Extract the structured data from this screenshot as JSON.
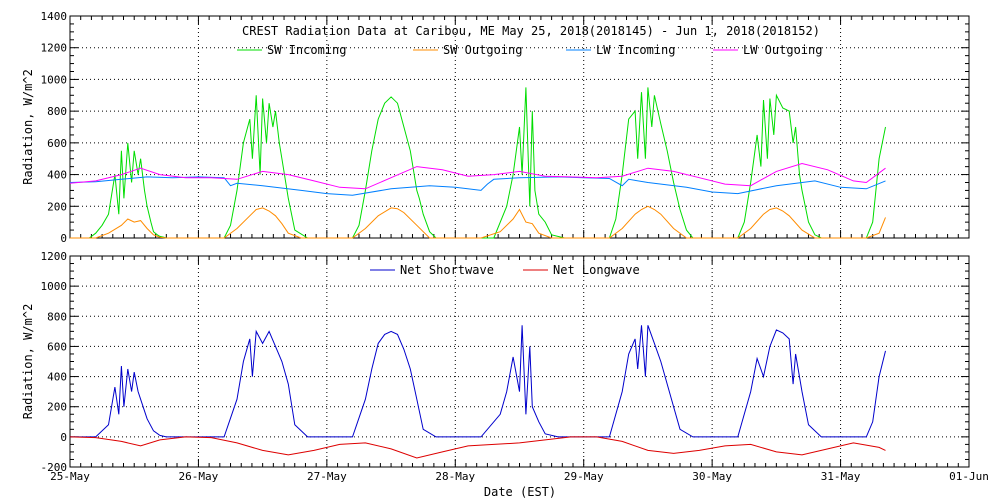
{
  "title": "CREST Radiation Data at Caribou, ME   May 25, 2018(2018145) - Jun  1, 2018(2018152)",
  "xlabel": "Date (EST)",
  "chart_data": [
    {
      "type": "line",
      "title": "CREST Radiation Data at Caribou, ME   May 25, 2018(2018145) - Jun  1, 2018(2018152)",
      "xlabel": "",
      "ylabel": "Radiation, W/m^2",
      "xlim": [
        0,
        7
      ],
      "ylim": [
        0,
        1400
      ],
      "yticks": [
        0,
        200,
        400,
        600,
        800,
        1000,
        1200,
        1400
      ],
      "grid": true,
      "legend": "top",
      "series": [
        {
          "name": "SW Incoming",
          "color": "#00dd00",
          "x": [
            0.0,
            0.15,
            0.2,
            0.25,
            0.3,
            0.35,
            0.38,
            0.4,
            0.42,
            0.45,
            0.48,
            0.5,
            0.53,
            0.55,
            0.58,
            0.6,
            0.63,
            0.65,
            0.68,
            0.7,
            0.73,
            0.75,
            0.8,
            0.85,
            1.2,
            1.25,
            1.3,
            1.35,
            1.4,
            1.42,
            1.45,
            1.48,
            1.5,
            1.53,
            1.55,
            1.58,
            1.6,
            1.63,
            1.65,
            1.7,
            1.75,
            1.85,
            2.2,
            2.25,
            2.3,
            2.35,
            2.4,
            2.45,
            2.5,
            2.55,
            2.6,
            2.65,
            2.7,
            2.72,
            2.75,
            2.8,
            2.85,
            3.2,
            3.3,
            3.4,
            3.45,
            3.5,
            3.52,
            3.55,
            3.58,
            3.6,
            3.62,
            3.65,
            3.7,
            3.75,
            3.85,
            4.2,
            4.25,
            4.3,
            4.35,
            4.4,
            4.42,
            4.45,
            4.48,
            4.5,
            4.53,
            4.55,
            4.6,
            4.65,
            4.7,
            4.75,
            4.8,
            4.85,
            5.2,
            5.25,
            5.3,
            5.35,
            5.38,
            5.4,
            5.43,
            5.45,
            5.48,
            5.5,
            5.55,
            5.6,
            5.63,
            5.65,
            5.68,
            5.7,
            5.75,
            5.8,
            5.85,
            6.2,
            6.25,
            6.3,
            6.35
          ],
          "values": [
            0,
            0,
            30,
            80,
            150,
            400,
            150,
            550,
            250,
            600,
            350,
            550,
            400,
            500,
            300,
            200,
            100,
            40,
            20,
            10,
            5,
            0,
            0,
            0,
            0,
            80,
            300,
            600,
            750,
            500,
            900,
            400,
            880,
            600,
            850,
            700,
            800,
            600,
            500,
            250,
            50,
            0,
            0,
            80,
            300,
            550,
            750,
            850,
            890,
            850,
            700,
            550,
            300,
            250,
            150,
            40,
            0,
            0,
            0,
            200,
            400,
            700,
            400,
            950,
            200,
            800,
            300,
            150,
            100,
            20,
            0,
            0,
            120,
            400,
            750,
            800,
            500,
            920,
            500,
            950,
            700,
            900,
            720,
            550,
            350,
            180,
            50,
            0,
            0,
            100,
            350,
            650,
            450,
            870,
            500,
            880,
            650,
            900,
            820,
            800,
            600,
            700,
            400,
            300,
            100,
            20,
            0,
            0,
            100,
            500,
            700
          ]
        },
        {
          "name": "SW Outgoing",
          "color": "#ff8c00",
          "x": [
            0.0,
            0.2,
            0.3,
            0.4,
            0.45,
            0.5,
            0.55,
            0.6,
            0.65,
            0.7,
            0.75,
            1.2,
            1.3,
            1.4,
            1.45,
            1.5,
            1.55,
            1.6,
            1.65,
            1.7,
            1.8,
            2.2,
            2.3,
            2.4,
            2.5,
            2.55,
            2.6,
            2.7,
            2.8,
            3.2,
            3.35,
            3.45,
            3.5,
            3.55,
            3.6,
            3.65,
            3.75,
            4.2,
            4.3,
            4.4,
            4.45,
            4.5,
            4.55,
            4.6,
            4.7,
            4.8,
            5.2,
            5.3,
            5.4,
            5.45,
            5.5,
            5.55,
            5.6,
            5.7,
            5.8,
            6.2,
            6.3,
            6.35
          ],
          "values": [
            0,
            0,
            30,
            80,
            120,
            100,
            110,
            60,
            20,
            5,
            0,
            0,
            60,
            140,
            180,
            190,
            170,
            140,
            90,
            30,
            0,
            0,
            60,
            140,
            190,
            185,
            160,
            80,
            0,
            0,
            40,
            120,
            180,
            100,
            90,
            30,
            0,
            0,
            60,
            150,
            180,
            200,
            180,
            150,
            60,
            0,
            0,
            60,
            150,
            180,
            190,
            170,
            140,
            50,
            0,
            0,
            30,
            130
          ]
        },
        {
          "name": "LW Incoming",
          "color": "#0080ff",
          "x": [
            0.0,
            0.2,
            0.4,
            0.6,
            0.8,
            1.0,
            1.2,
            1.25,
            1.3,
            1.5,
            1.8,
            2.0,
            2.2,
            2.5,
            2.8,
            3.0,
            3.2,
            3.25,
            3.3,
            3.5,
            3.8,
            4.0,
            4.2,
            4.3,
            4.35,
            4.5,
            4.8,
            5.0,
            5.2,
            5.5,
            5.8,
            6.0,
            6.2,
            6.35
          ],
          "values": [
            350,
            355,
            370,
            385,
            380,
            385,
            380,
            330,
            345,
            330,
            300,
            280,
            270,
            310,
            330,
            320,
            300,
            340,
            370,
            380,
            385,
            380,
            375,
            330,
            370,
            350,
            320,
            290,
            280,
            330,
            360,
            320,
            310,
            360
          ]
        },
        {
          "name": "LW Outgoing",
          "color": "#ff00ff",
          "x": [
            0.0,
            0.2,
            0.4,
            0.55,
            0.7,
            0.9,
            1.1,
            1.3,
            1.5,
            1.7,
            1.9,
            2.1,
            2.3,
            2.5,
            2.7,
            2.9,
            3.1,
            3.3,
            3.5,
            3.7,
            3.9,
            4.1,
            4.3,
            4.5,
            4.7,
            4.9,
            5.1,
            5.3,
            5.5,
            5.7,
            5.9,
            6.1,
            6.2,
            6.35
          ],
          "values": [
            345,
            360,
            400,
            440,
            400,
            380,
            380,
            370,
            420,
            400,
            360,
            320,
            310,
            380,
            450,
            430,
            390,
            400,
            420,
            390,
            385,
            380,
            390,
            440,
            420,
            380,
            340,
            330,
            420,
            470,
            430,
            360,
            350,
            440
          ]
        }
      ]
    },
    {
      "type": "line",
      "title": "",
      "xlabel": "Date (EST)",
      "ylabel": "Radiation, W/m^2",
      "xlim": [
        0,
        7
      ],
      "ylim": [
        -200,
        1200
      ],
      "yticks": [
        -200,
        0,
        200,
        400,
        600,
        800,
        1000,
        1200
      ],
      "xticks": [
        "25-May",
        "26-May",
        "27-May",
        "28-May",
        "29-May",
        "30-May",
        "31-May",
        "01-Jun"
      ],
      "grid": true,
      "legend": "top",
      "series": [
        {
          "name": "Net Shortwave",
          "color": "#0000cc",
          "x": [
            0.0,
            0.2,
            0.3,
            0.35,
            0.38,
            0.4,
            0.42,
            0.45,
            0.48,
            0.5,
            0.53,
            0.55,
            0.6,
            0.65,
            0.7,
            0.75,
            0.8,
            1.2,
            1.3,
            1.35,
            1.4,
            1.42,
            1.45,
            1.5,
            1.55,
            1.6,
            1.65,
            1.7,
            1.75,
            1.85,
            2.2,
            2.3,
            2.35,
            2.4,
            2.45,
            2.5,
            2.55,
            2.6,
            2.65,
            2.7,
            2.75,
            2.85,
            3.2,
            3.35,
            3.4,
            3.45,
            3.5,
            3.52,
            3.55,
            3.58,
            3.6,
            3.65,
            3.7,
            3.8,
            4.2,
            4.3,
            4.35,
            4.4,
            4.42,
            4.45,
            4.48,
            4.5,
            4.55,
            4.6,
            4.65,
            4.7,
            4.75,
            4.85,
            5.2,
            5.3,
            5.35,
            5.4,
            5.45,
            5.5,
            5.55,
            5.6,
            5.63,
            5.65,
            5.7,
            5.75,
            5.85,
            6.2,
            6.25,
            6.3,
            6.35
          ],
          "values": [
            0,
            0,
            80,
            330,
            150,
            470,
            200,
            450,
            300,
            430,
            300,
            250,
            120,
            40,
            10,
            0,
            0,
            0,
            250,
            500,
            650,
            400,
            700,
            620,
            700,
            600,
            500,
            350,
            80,
            0,
            0,
            250,
            450,
            620,
            680,
            700,
            680,
            580,
            450,
            250,
            50,
            0,
            0,
            150,
            300,
            530,
            300,
            740,
            150,
            600,
            200,
            100,
            20,
            0,
            0,
            300,
            550,
            650,
            450,
            740,
            400,
            740,
            620,
            500,
            350,
            200,
            50,
            0,
            0,
            300,
            520,
            400,
            600,
            710,
            690,
            650,
            350,
            550,
            300,
            80,
            0,
            0,
            100,
            400,
            570
          ]
        },
        {
          "name": "Net Longwave",
          "color": "#dd0000",
          "x": [
            0.0,
            0.2,
            0.4,
            0.55,
            0.7,
            0.9,
            1.1,
            1.3,
            1.5,
            1.7,
            1.9,
            2.1,
            2.3,
            2.5,
            2.7,
            2.9,
            3.1,
            3.3,
            3.5,
            3.7,
            3.9,
            4.1,
            4.3,
            4.5,
            4.7,
            4.9,
            5.1,
            5.3,
            5.5,
            5.7,
            5.9,
            6.1,
            6.3,
            6.35
          ],
          "values": [
            0,
            -5,
            -30,
            -60,
            -20,
            0,
            -5,
            -40,
            -90,
            -120,
            -90,
            -50,
            -40,
            -80,
            -140,
            -100,
            -60,
            -50,
            -40,
            -20,
            0,
            0,
            -30,
            -90,
            -110,
            -90,
            -60,
            -50,
            -100,
            -120,
            -80,
            -40,
            -70,
            -90
          ]
        }
      ]
    }
  ]
}
